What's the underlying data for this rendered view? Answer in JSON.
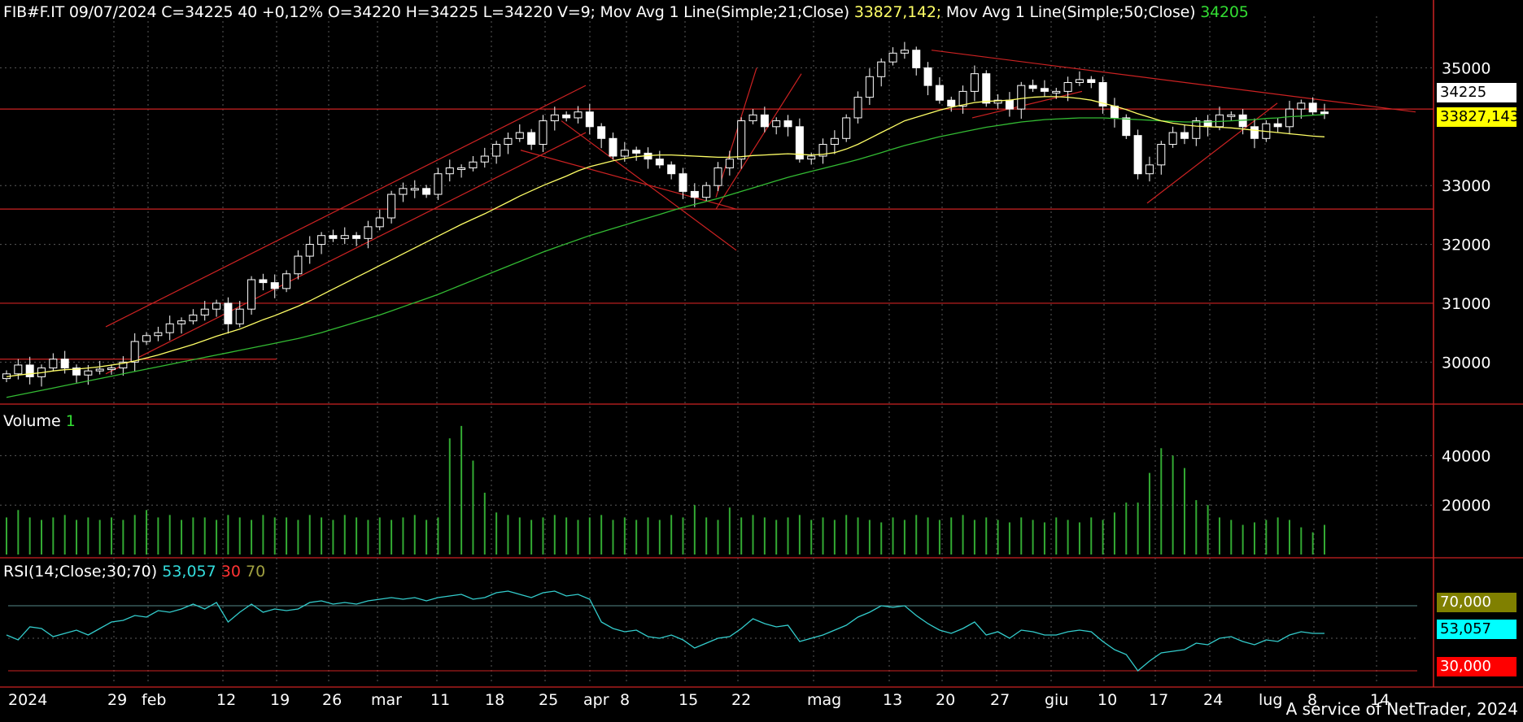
{
  "header": {
    "symbol": "FIB#F.IT",
    "date": "09/07/2024",
    "quote": "C=34225 40 +0,12% O=34220 H=34225 L=34220 V=9;",
    "ma21_label": "Mov Avg 1 Line(Simple;21;Close)",
    "ma21_value": "33827,142;",
    "ma50_label": "Mov Avg 1 Line(Simple;50;Close)",
    "ma50_value": "34205"
  },
  "volume_header": {
    "label": "Volume",
    "value": "1"
  },
  "rsi_header": {
    "label": "RSI(14;Close;30;70)",
    "value": "53,057",
    "low": "30",
    "high": "70"
  },
  "tags": {
    "last_price": "34225",
    "ma21": "33827,143",
    "rsi_high": "70,000",
    "rsi_value": "53,057",
    "rsi_low": "30,000"
  },
  "footer": "A service of NetTrader, 2024",
  "colors": {
    "background": "#000000",
    "candle_up": "#ffffff",
    "ma21": "#ffff66",
    "ma50": "#33bb33",
    "trendline": "#cc2222",
    "volume": "#33aa33",
    "rsi": "#33cccc",
    "grid": "#5a5a5a",
    "axis": "#cc2222"
  },
  "chart_data": [
    {
      "type": "candlestick",
      "title": "FIB#F.IT",
      "ylim": [
        29300,
        35600
      ],
      "y_ticks": [
        30000,
        31000,
        32000,
        33000,
        35000
      ],
      "x_ticks": [
        "2024",
        "29",
        "feb",
        "12",
        "19",
        "26",
        "mar",
        "11",
        "18",
        "25",
        "apr",
        "8",
        "15",
        "22",
        "mag",
        "13",
        "20",
        "27",
        "giu",
        "10",
        "17",
        "24",
        "lug",
        "8",
        "14"
      ],
      "close": [
        29800,
        29950,
        29750,
        29900,
        30050,
        29900,
        29780,
        29850,
        29880,
        29900,
        30000,
        30350,
        30450,
        30500,
        30650,
        30700,
        30800,
        30900,
        31000,
        30650,
        30900,
        31400,
        31350,
        31250,
        31500,
        31800,
        32000,
        32150,
        32100,
        32150,
        32100,
        32300,
        32450,
        32850,
        32950,
        32950,
        32850,
        33200,
        33300,
        33300,
        33400,
        33500,
        33700,
        33800,
        33900,
        33700,
        34100,
        34200,
        34150,
        34250,
        34000,
        33800,
        33500,
        33600,
        33550,
        33450,
        33350,
        33200,
        32900,
        32800,
        33000,
        33300,
        33450,
        34100,
        34200,
        34000,
        34100,
        34000,
        33450,
        33500,
        33700,
        33800,
        34150,
        34500,
        34850,
        35100,
        35250,
        35300,
        35000,
        34700,
        34450,
        34350,
        34600,
        34900,
        34400,
        34450,
        34300,
        34700,
        34650,
        34600,
        34600,
        34750,
        34800,
        34750,
        34350,
        34150,
        33850,
        33200,
        33350,
        33700,
        33900,
        33800,
        34100,
        34000,
        34200,
        34200,
        34000,
        33800,
        34050,
        34000,
        34300,
        34400,
        34250,
        34225
      ],
      "ma21": [
        29750,
        29780,
        29800,
        29820,
        29850,
        29870,
        29880,
        29900,
        29920,
        29950,
        29980,
        30020,
        30070,
        30120,
        30180,
        30240,
        30300,
        30370,
        30440,
        30500,
        30560,
        30640,
        30720,
        30790,
        30870,
        30950,
        31040,
        31140,
        31240,
        31340,
        31440,
        31540,
        31640,
        31740,
        31840,
        31940,
        32040,
        32140,
        32240,
        32340,
        32430,
        32520,
        32620,
        32720,
        32820,
        32910,
        33000,
        33080,
        33160,
        33250,
        33320,
        33370,
        33420,
        33460,
        33490,
        33510,
        33520,
        33520,
        33510,
        33500,
        33490,
        33480,
        33480,
        33490,
        33510,
        33520,
        33530,
        33540,
        33530,
        33520,
        33530,
        33560,
        33620,
        33700,
        33800,
        33900,
        34000,
        34100,
        34160,
        34220,
        34280,
        34330,
        34370,
        34410,
        34430,
        34440,
        34450,
        34480,
        34500,
        34510,
        34510,
        34500,
        34480,
        34450,
        34400,
        34350,
        34290,
        34220,
        34160,
        34100,
        34060,
        34030,
        34010,
        34000,
        33990,
        33980,
        33960,
        33940,
        33920,
        33900,
        33880,
        33860,
        33840,
        33827
      ],
      "ma50": [
        29400,
        29440,
        29480,
        29520,
        29560,
        29600,
        29640,
        29680,
        29720,
        29760,
        29800,
        29840,
        29880,
        29920,
        29960,
        30000,
        30040,
        30080,
        30120,
        30160,
        30200,
        30240,
        30280,
        30320,
        30360,
        30400,
        30450,
        30500,
        30560,
        30620,
        30680,
        30740,
        30800,
        30870,
        30940,
        31010,
        31080,
        31150,
        31230,
        31310,
        31390,
        31470,
        31550,
        31630,
        31710,
        31790,
        31870,
        31940,
        32010,
        32080,
        32150,
        32210,
        32270,
        32330,
        32390,
        32450,
        32510,
        32570,
        32630,
        32680,
        32730,
        32780,
        32840,
        32900,
        32960,
        33020,
        33080,
        33140,
        33190,
        33240,
        33290,
        33340,
        33390,
        33440,
        33500,
        33560,
        33620,
        33680,
        33730,
        33780,
        33830,
        33870,
        33910,
        33950,
        33990,
        34020,
        34050,
        34080,
        34100,
        34120,
        34130,
        34140,
        34150,
        34150,
        34150,
        34140,
        34130,
        34120,
        34110,
        34100,
        34090,
        34080,
        34080,
        34080,
        34090,
        34100,
        34110,
        34120,
        34140,
        34150,
        34170,
        34180,
        34195,
        34205
      ]
    },
    {
      "type": "bar",
      "title": "Volume",
      "ylim": [
        0,
        50000
      ],
      "y_ticks": [
        20000,
        40000
      ],
      "values": [
        15000,
        18000,
        15000,
        14000,
        15000,
        16000,
        14000,
        15000,
        14000,
        15000,
        14000,
        16000,
        18000,
        15000,
        16000,
        14000,
        15000,
        15000,
        14000,
        16000,
        15000,
        14000,
        16000,
        15000,
        15000,
        14000,
        16000,
        15000,
        14000,
        16000,
        15000,
        14000,
        15000,
        14000,
        15000,
        16000,
        14000,
        15000,
        47000,
        52000,
        38000,
        25000,
        17000,
        16000,
        15000,
        14000,
        15000,
        16000,
        15000,
        14000,
        15000,
        16000,
        14000,
        15000,
        14000,
        15000,
        14000,
        16000,
        15000,
        20000,
        15000,
        14000,
        19000,
        15000,
        16000,
        15000,
        14000,
        15000,
        16000,
        14000,
        15000,
        14000,
        16000,
        15000,
        14000,
        13000,
        15000,
        14000,
        16000,
        15000,
        14000,
        15000,
        16000,
        14000,
        15000,
        14000,
        13000,
        15000,
        14000,
        13000,
        15000,
        14000,
        13000,
        15000,
        14000,
        17000,
        21000,
        21000,
        33000,
        43000,
        40000,
        35000,
        22000,
        20000,
        15000,
        14000,
        12000,
        13000,
        14000,
        15000,
        14000,
        11000,
        9000,
        12000
      ]
    },
    {
      "type": "line",
      "title": "RSI(14;Close;30;70)",
      "ylim": [
        25,
        85
      ],
      "y_ticks": [
        30,
        50,
        70
      ],
      "values": [
        52,
        49,
        57,
        56,
        51,
        53,
        55,
        52,
        56,
        60,
        61,
        64,
        63,
        67,
        66,
        68,
        71,
        68,
        72,
        60,
        66,
        71,
        66,
        68,
        67,
        68,
        72,
        73,
        71,
        72,
        71,
        73,
        74,
        75,
        74,
        75,
        73,
        75,
        76,
        77,
        74,
        75,
        78,
        79,
        77,
        75,
        78,
        79,
        76,
        77,
        74,
        60,
        56,
        54,
        55,
        51,
        50,
        52,
        49,
        44,
        47,
        50,
        51,
        56,
        62,
        59,
        57,
        58,
        48,
        50,
        52,
        55,
        58,
        63,
        66,
        70,
        69,
        70,
        64,
        59,
        55,
        53,
        56,
        60,
        52,
        54,
        50,
        55,
        54,
        52,
        52,
        54,
        55,
        54,
        48,
        43,
        40,
        30,
        36,
        41,
        42,
        43,
        47,
        46,
        50,
        51,
        48,
        46,
        49,
        48,
        52,
        54,
        53,
        53
      ]
    }
  ]
}
